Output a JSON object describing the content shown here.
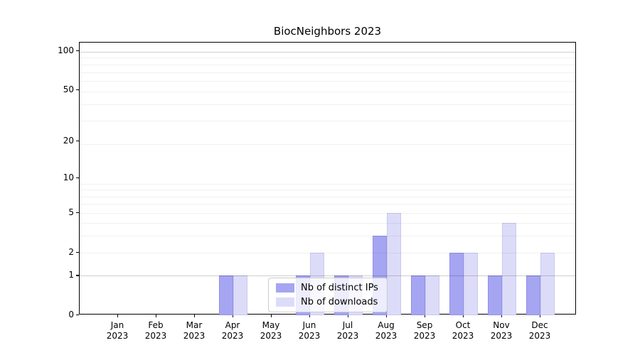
{
  "chart_data": {
    "type": "bar",
    "title": "BiocNeighbors 2023",
    "categories": [
      "Jan 2023",
      "Feb 2023",
      "Mar 2023",
      "Apr 2023",
      "May 2023",
      "Jun 2023",
      "Jul 2023",
      "Aug 2023",
      "Sep 2023",
      "Oct 2023",
      "Nov 2023",
      "Dec 2023"
    ],
    "x_axis": {
      "months": [
        "Jan",
        "Feb",
        "Mar",
        "Apr",
        "May",
        "Jun",
        "Jul",
        "Aug",
        "Sep",
        "Oct",
        "Nov",
        "Dec"
      ],
      "year": "2023"
    },
    "series": [
      {
        "name": "Nb of distinct IPs",
        "color": "#a5a5f2",
        "edge_color": "#9292e4",
        "values": [
          0,
          0,
          0,
          1,
          0,
          1,
          1,
          3,
          1,
          2,
          1,
          1
        ]
      },
      {
        "name": "Nb of downloads",
        "color": "#dcdcf9",
        "edge_color": "#c9c9f0",
        "values": [
          0,
          0,
          0,
          1,
          0,
          2,
          1,
          5,
          1,
          2,
          4,
          2
        ]
      }
    ],
    "y_axis": {
      "scale": "log10(value+1)",
      "ticks": [
        100,
        50,
        20,
        10,
        5,
        2,
        1,
        0
      ],
      "min": 0,
      "max": 116
    },
    "grid": {
      "minor_values": [
        1,
        2,
        3,
        4,
        5,
        6,
        7,
        8,
        9,
        19,
        29,
        39,
        49,
        59,
        69,
        79,
        89,
        99
      ],
      "emphasized_values": [
        1,
        99
      ],
      "orientation": "horizontal"
    },
    "legend": {
      "position": "inside-bottom-center",
      "entries": [
        "Nb of distinct IPs",
        "Nb of downloads"
      ]
    }
  }
}
